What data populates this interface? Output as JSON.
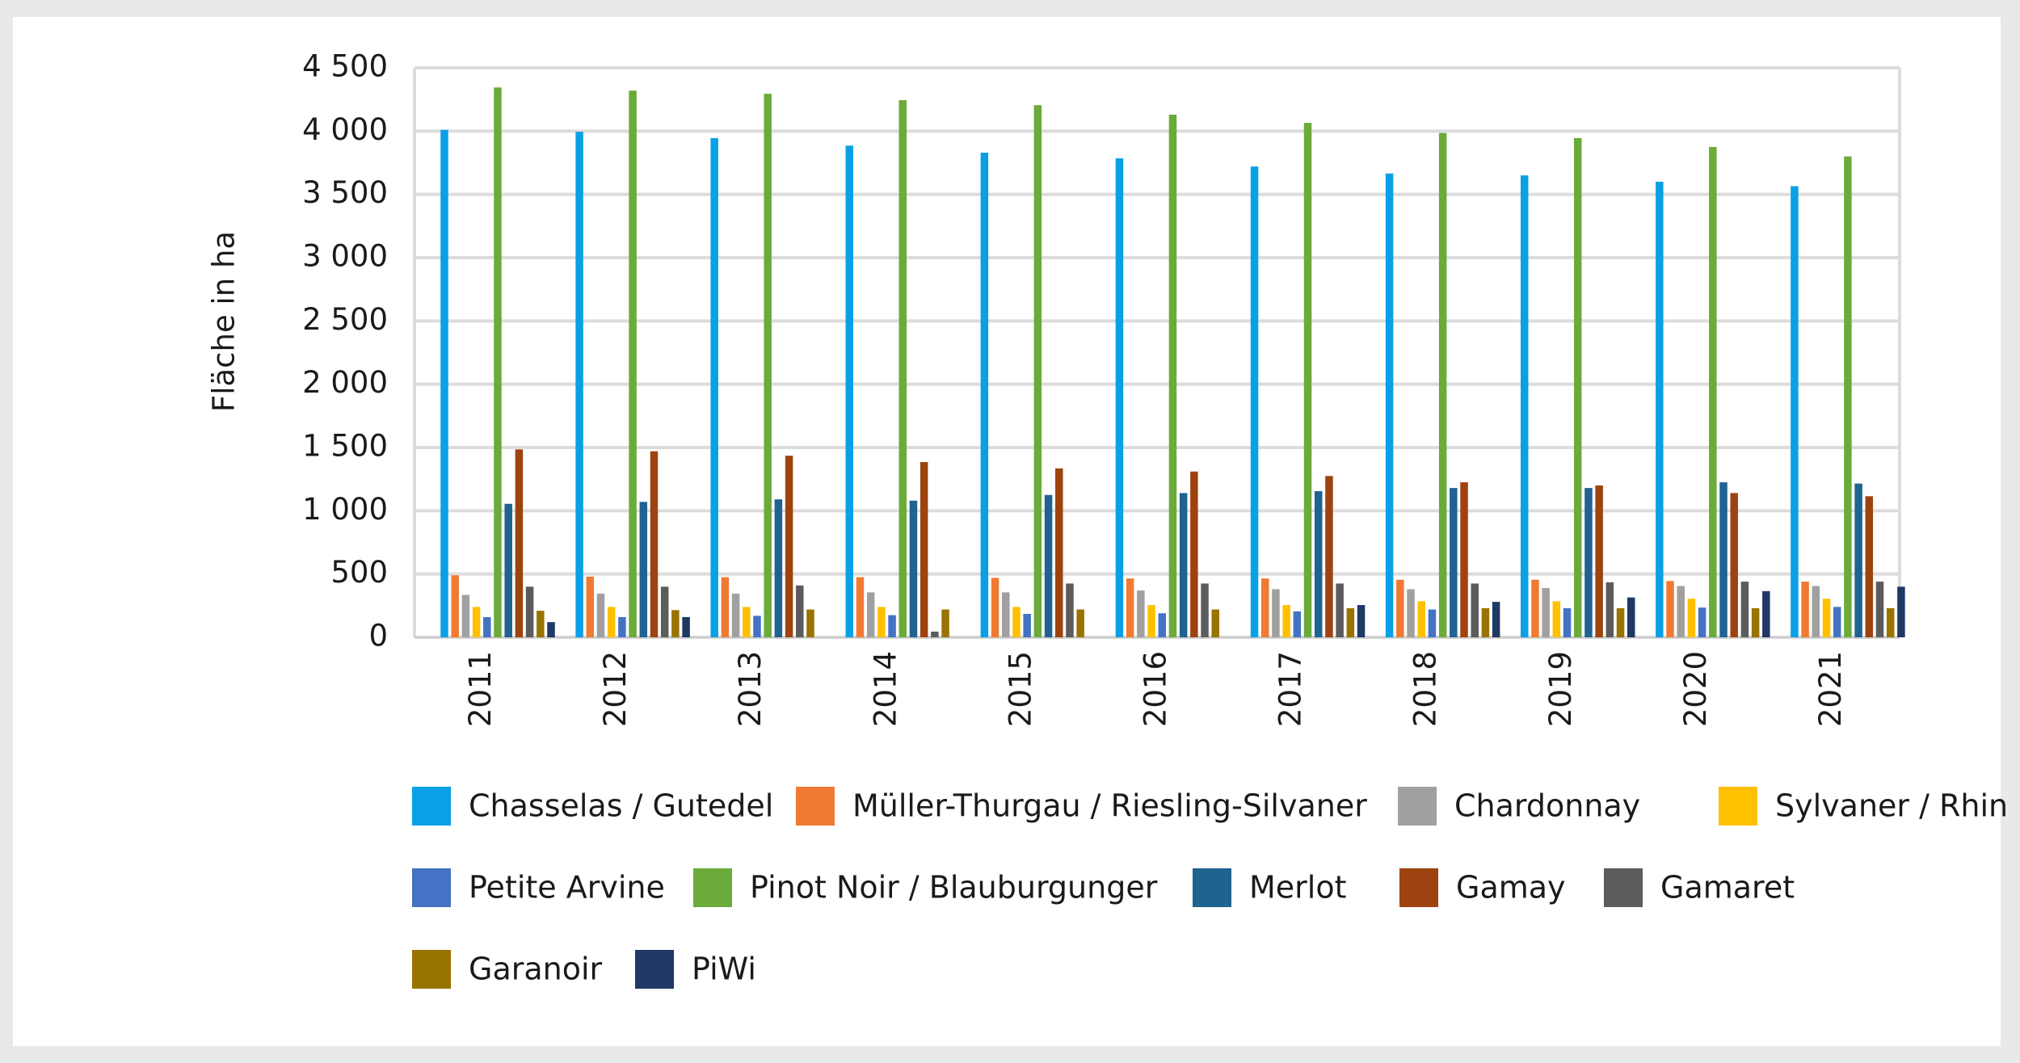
{
  "chart_data": {
    "type": "bar",
    "title": "",
    "xlabel": "",
    "ylabel": "Fläche in ha",
    "ylim": [
      0,
      4500
    ],
    "yticks": [
      0,
      500,
      1000,
      1500,
      2000,
      2500,
      3000,
      3500,
      4000,
      4500
    ],
    "ytick_labels": [
      "0",
      "500",
      "1 000",
      "1 500",
      "2 000",
      "2 500",
      "3 000",
      "3 500",
      "4 000",
      "4 500"
    ],
    "grid": true,
    "legend_position": "bottom",
    "categories": [
      "2011",
      "2012",
      "2013",
      "2014",
      "2015",
      "2016",
      "2017",
      "2018",
      "2019",
      "2020",
      "2021"
    ],
    "series": [
      {
        "name": "Chasselas / Gutedel",
        "color": "#0aa0e6",
        "values": [
          4010,
          3995,
          3945,
          3885,
          3830,
          3785,
          3720,
          3665,
          3650,
          3600,
          3565
        ]
      },
      {
        "name": "Müller-Thurgau / Riesling-Silvaner",
        "color": "#f07a32",
        "values": [
          490,
          480,
          475,
          475,
          470,
          465,
          465,
          455,
          455,
          445,
          440
        ]
      },
      {
        "name": "Chardonnay",
        "color": "#a0a0a0",
        "values": [
          335,
          345,
          345,
          355,
          355,
          370,
          380,
          380,
          390,
          405,
          405
        ]
      },
      {
        "name": "Sylvaner / Rhin",
        "color": "#ffc000",
        "values": [
          240,
          240,
          240,
          240,
          240,
          255,
          255,
          285,
          285,
          305,
          305
        ]
      },
      {
        "name": "Petite Arvine",
        "color": "#4472c4",
        "values": [
          160,
          160,
          170,
          175,
          185,
          190,
          205,
          220,
          230,
          235,
          240
        ]
      },
      {
        "name": "Pinot Noir / Blauburgunger",
        "color": "#6aab3a",
        "values": [
          4345,
          4320,
          4295,
          4245,
          4205,
          4130,
          4065,
          3985,
          3945,
          3875,
          3800
        ]
      },
      {
        "name": "Merlot",
        "color": "#1f6391",
        "values": [
          1055,
          1070,
          1090,
          1080,
          1125,
          1140,
          1155,
          1180,
          1180,
          1225,
          1215
        ]
      },
      {
        "name": "Gamay",
        "color": "#9e4310",
        "values": [
          1485,
          1470,
          1435,
          1385,
          1335,
          1310,
          1275,
          1225,
          1200,
          1140,
          1115
        ]
      },
      {
        "name": "Gamaret",
        "color": "#5c5c5c",
        "values": [
          400,
          400,
          410,
          45,
          425,
          425,
          425,
          425,
          435,
          440,
          440
        ]
      },
      {
        "name": "Garanoir",
        "color": "#997300",
        "values": [
          210,
          215,
          220,
          220,
          220,
          220,
          230,
          230,
          230,
          230,
          230
        ]
      },
      {
        "name": "PiWi",
        "color": "#203864",
        "values": [
          120,
          160,
          0,
          0,
          0,
          0,
          255,
          280,
          315,
          365,
          400
        ]
      }
    ]
  }
}
